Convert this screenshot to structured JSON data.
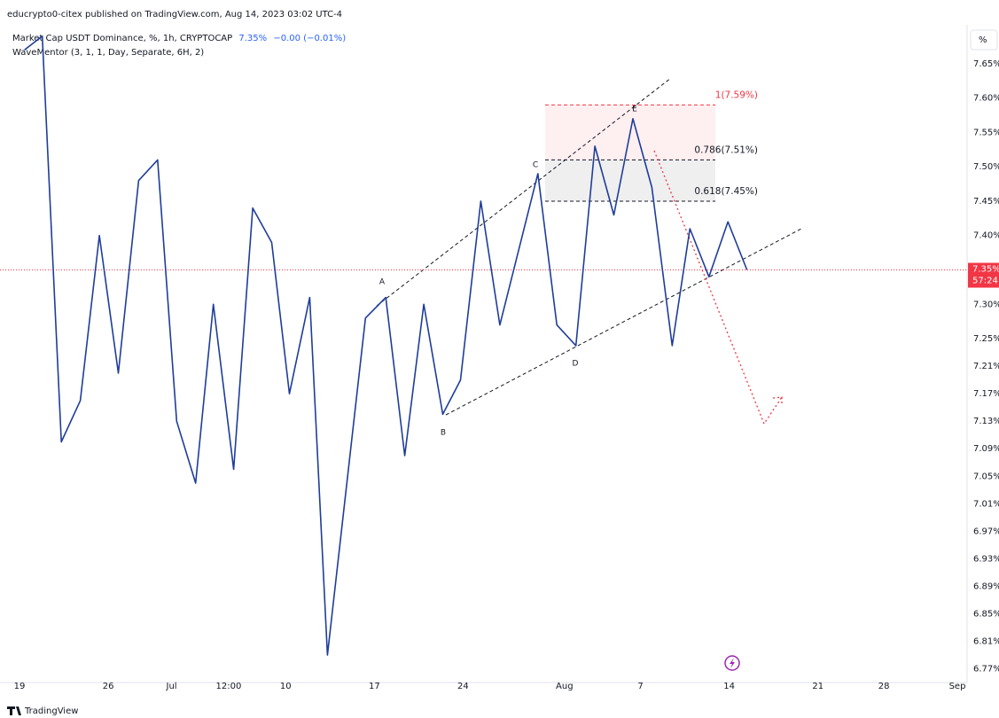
{
  "header": "educrypto0-citex published on TradingView.com, Aug 14, 2023 03:02 UTC-4",
  "legend": {
    "symbol": "Market Cap USDT Dominance, %, 1h, CRYPTOCAP",
    "price": "7.35%",
    "change": "−0.00 (−0.01%)",
    "indicator": "WaveMentor (3, 1, 1, Day, Separate, 6H, 2)"
  },
  "scale_button": "%",
  "footer": "TradingView",
  "chart_data": {
    "type": "line",
    "grid": false,
    "series": [
      {
        "name": "Market Cap USDT Dominance",
        "color": "#1f3d99",
        "x": [
          0.4,
          1.8,
          3.3,
          4.8,
          6.3,
          7.8,
          9.4,
          10.9,
          12.4,
          13.9,
          15.3,
          16.9,
          18.4,
          19.9,
          21.3,
          22.9,
          24.3,
          27.3,
          28.9,
          30.4,
          31.9,
          33.4,
          34.8,
          36.4,
          37.9,
          40.9,
          42.4,
          43.9,
          45.4,
          46.9,
          48.4,
          49.9,
          51.5,
          52.9,
          54.4,
          55.9,
          57.4
        ],
        "values": [
          7.67,
          7.69,
          7.1,
          7.16,
          7.4,
          7.2,
          7.48,
          7.51,
          7.13,
          7.04,
          7.3,
          7.06,
          7.44,
          7.39,
          7.17,
          7.31,
          6.79,
          7.28,
          7.31,
          7.08,
          7.3,
          7.14,
          7.19,
          7.45,
          7.27,
          7.49,
          7.27,
          7.24,
          7.53,
          7.43,
          7.57,
          7.47,
          7.24,
          7.41,
          7.34,
          7.42,
          7.35
        ]
      }
    ],
    "xlim": [
      -1.2,
      74.3
    ],
    "xticks": [
      {
        "value": 0,
        "label": "19"
      },
      {
        "value": 7,
        "label": "26"
      },
      {
        "value": 12,
        "label": "Jul"
      },
      {
        "value": 16.5,
        "label": "12:00"
      },
      {
        "value": 21,
        "label": "10"
      },
      {
        "value": 28,
        "label": "17"
      },
      {
        "value": 35,
        "label": "24"
      },
      {
        "value": 43,
        "label": "Aug"
      },
      {
        "value": 49,
        "label": "7"
      },
      {
        "value": 56,
        "label": "14"
      },
      {
        "value": 63,
        "label": "21"
      },
      {
        "value": 68.2,
        "label": "28"
      },
      {
        "value": 74,
        "label": "Sep"
      }
    ],
    "ylim": [
      6.75,
      7.7
    ],
    "yticks": [
      {
        "value": 7.65,
        "label": "7.65%"
      },
      {
        "value": 7.6,
        "label": "7.60%"
      },
      {
        "value": 7.55,
        "label": "7.55%"
      },
      {
        "value": 7.5,
        "label": "7.50%"
      },
      {
        "value": 7.45,
        "label": "7.45%"
      },
      {
        "value": 7.4,
        "label": "7.40%"
      },
      {
        "value": 7.3,
        "label": "7.30%"
      },
      {
        "value": 7.25,
        "label": "7.25%"
      },
      {
        "value": 7.21,
        "label": "7.21%"
      },
      {
        "value": 7.17,
        "label": "7.17%"
      },
      {
        "value": 7.13,
        "label": "7.13%"
      },
      {
        "value": 7.09,
        "label": "7.09%"
      },
      {
        "value": 7.05,
        "label": "7.05%"
      },
      {
        "value": 7.01,
        "label": "7.01%"
      },
      {
        "value": 6.97,
        "label": "6.97%"
      },
      {
        "value": 6.93,
        "label": "6.93%"
      },
      {
        "value": 6.89,
        "label": "6.89%"
      },
      {
        "value": 6.85,
        "label": "6.85%"
      },
      {
        "value": 6.81,
        "label": "6.81%"
      },
      {
        "value": 6.77,
        "label": "6.77%"
      }
    ],
    "last_price": {
      "value": 7.35,
      "label": "7.35%",
      "countdown": "57:24",
      "color": "#f23645"
    },
    "fib_levels": [
      {
        "value": 7.59,
        "label": "1(7.59%)",
        "color": "#f23645"
      },
      {
        "value": 7.51,
        "label": "0.786(7.51%)",
        "color": "#131722"
      },
      {
        "value": 7.45,
        "label": "0.618(7.45%)",
        "color": "#131722"
      }
    ],
    "wave_labels": [
      "A",
      "B",
      "C",
      "D",
      "E"
    ]
  }
}
